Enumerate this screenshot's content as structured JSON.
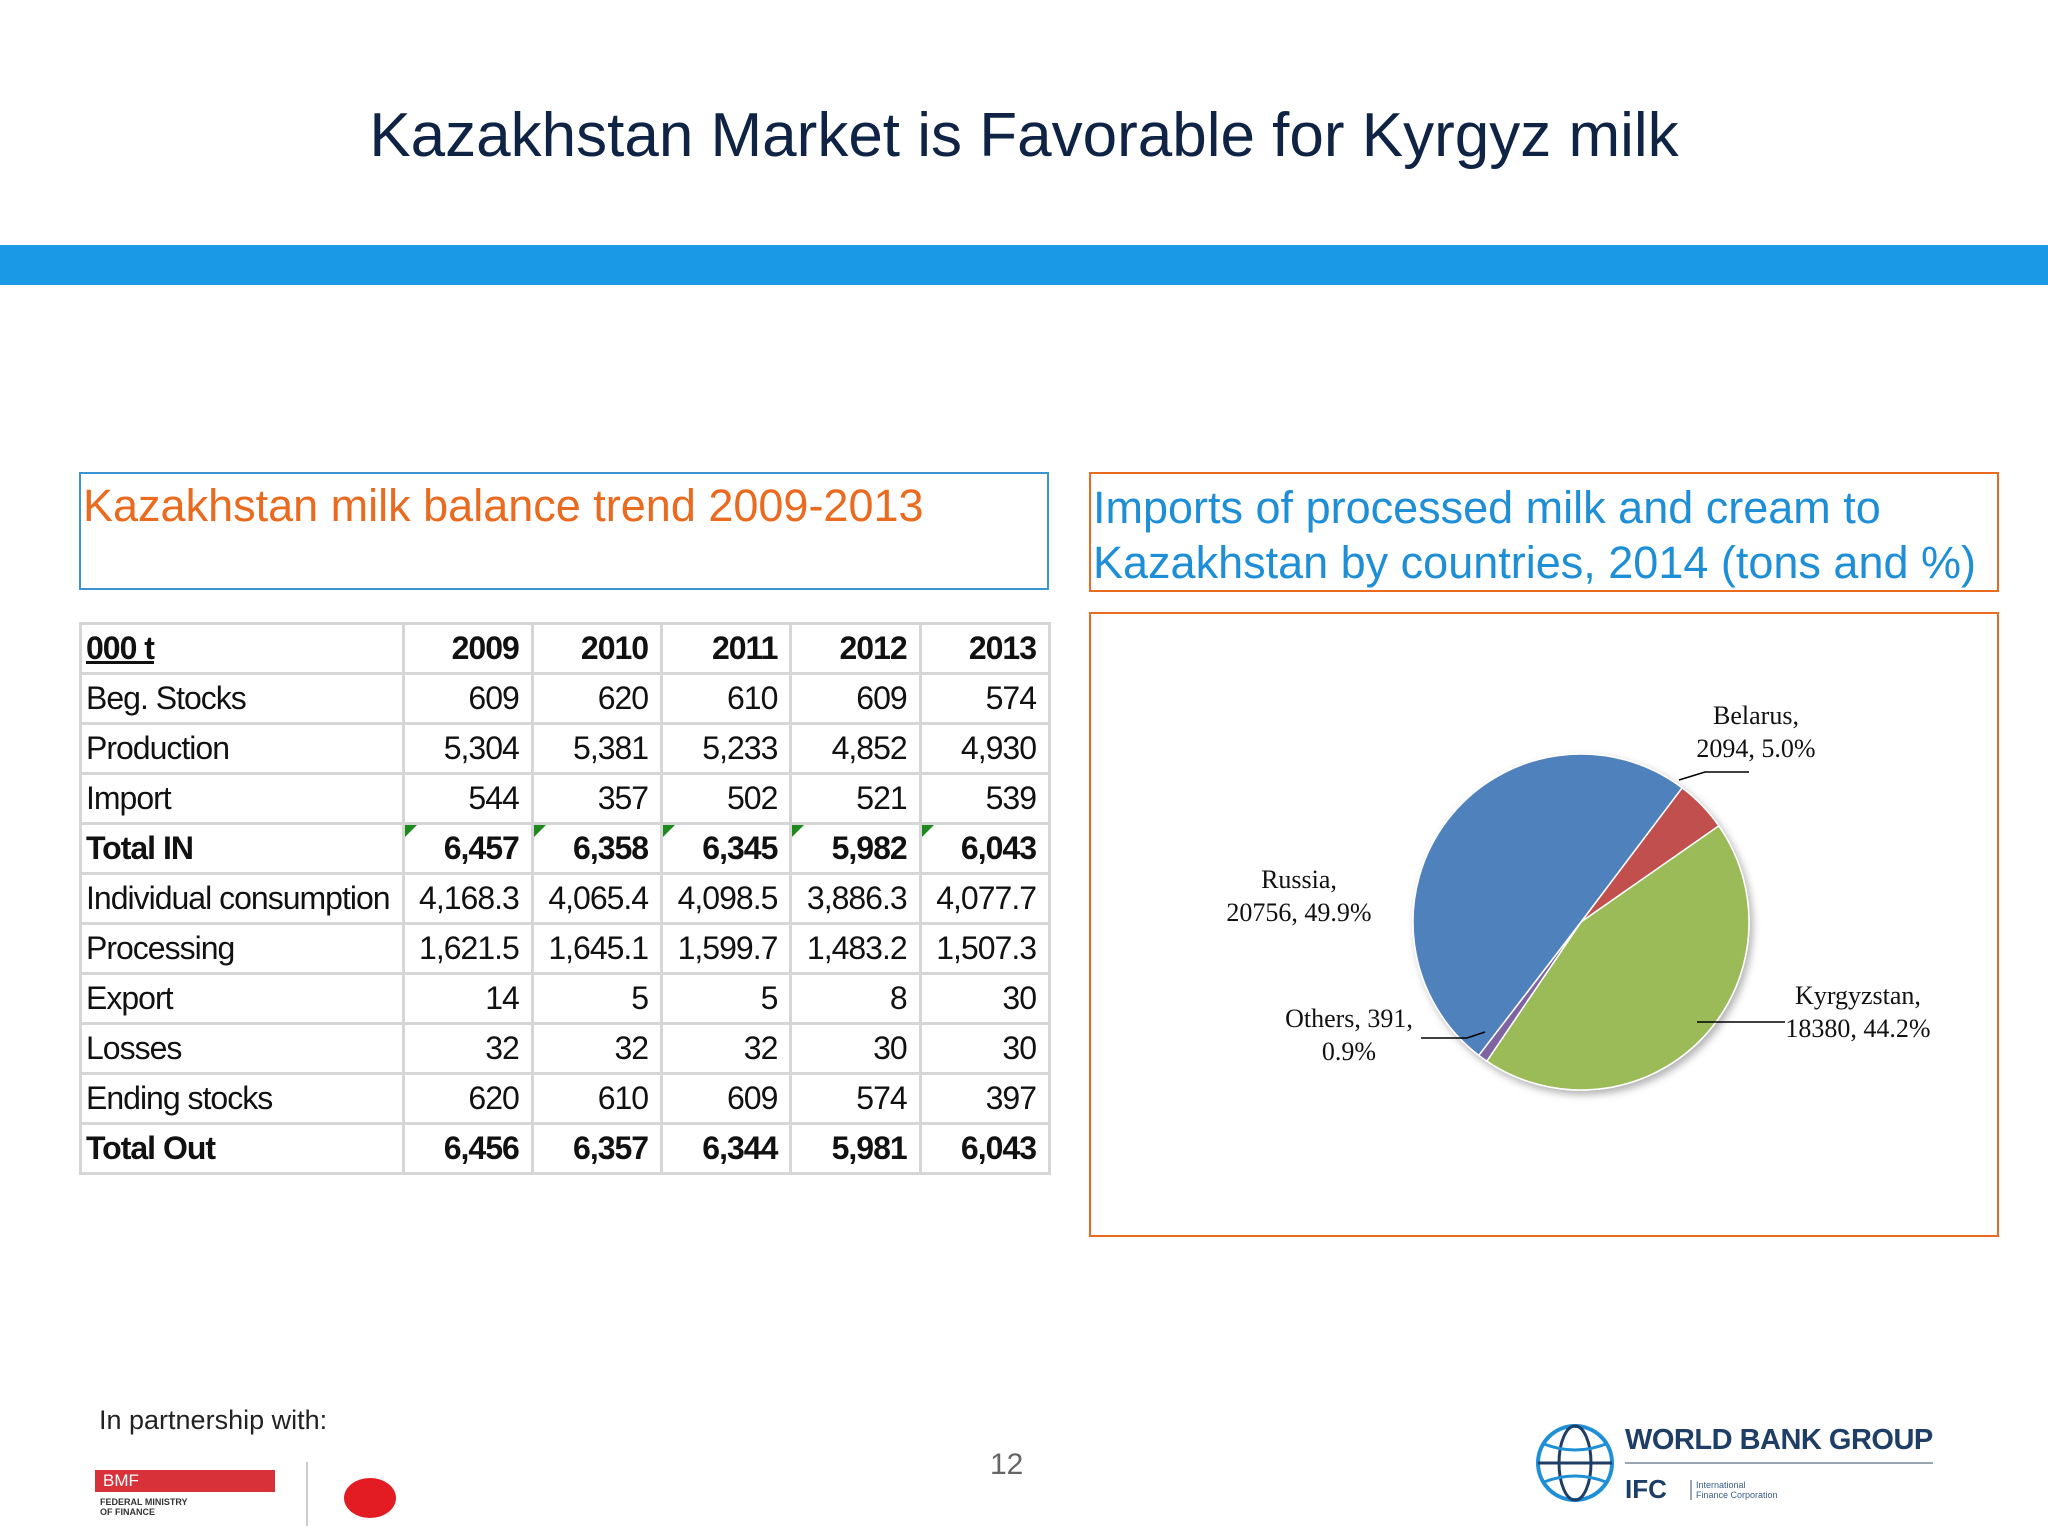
{
  "slide": {
    "title": "Kazakhstan Market is Favorable for Kyrgyz milk",
    "page_number": "12",
    "partnership_label": "In partnership with:"
  },
  "left_panel": {
    "caption": "Kazakhstan milk balance trend 2009-2013"
  },
  "right_panel": {
    "caption_line1": "Imports of processed milk and cream to",
    "caption_line2": "Kazakhstan by countries, 2014 (tons and %)"
  },
  "balance_table": {
    "unit_header": "000 t",
    "years": [
      "2009",
      "2010",
      "2011",
      "2012",
      "2013"
    ],
    "rows": [
      {
        "label": "Beg. Stocks",
        "values": [
          "609",
          "620",
          "610",
          "609",
          "574"
        ],
        "bold": false
      },
      {
        "label": "Production",
        "values": [
          "5,304",
          "5,381",
          "5,233",
          "4,852",
          "4,930"
        ],
        "bold": false
      },
      {
        "label": "Import",
        "values": [
          "544",
          "357",
          "502",
          "521",
          "539"
        ],
        "bold": false
      },
      {
        "label": "Total IN",
        "values": [
          "6,457",
          "6,358",
          "6,345",
          "5,982",
          "6,043"
        ],
        "bold": true
      },
      {
        "label": "Individual consumption",
        "values": [
          "4,168.3",
          "4,065.4",
          "4,098.5",
          "3,886.3",
          "4,077.7"
        ],
        "bold": false
      },
      {
        "label": "Processing",
        "values": [
          "1,621.5",
          "1,645.1",
          "1,599.7",
          "1,483.2",
          "1,507.3"
        ],
        "bold": false
      },
      {
        "label": "Export",
        "values": [
          "14",
          "5",
          "5",
          "8",
          "30"
        ],
        "bold": false
      },
      {
        "label": "Losses",
        "values": [
          "32",
          "32",
          "32",
          "30",
          "30"
        ],
        "bold": false
      },
      {
        "label": "Ending stocks",
        "values": [
          "620",
          "610",
          "609",
          "574",
          "397"
        ],
        "bold": false
      },
      {
        "label": "Total Out",
        "values": [
          "6,456",
          "6,357",
          "6,344",
          "5,981",
          "6,043"
        ],
        "bold": true
      }
    ]
  },
  "chart_data": {
    "type": "pie",
    "slices": [
      {
        "name": "Belarus",
        "value": 2094,
        "percent": 5.0,
        "label_line1": "Belarus,",
        "label_line2": "2094, 5.0%",
        "color": "#c0504d"
      },
      {
        "name": "Kyrgyzstan",
        "value": 18380,
        "percent": 44.2,
        "label_line1": "Kyrgyzstan,",
        "label_line2": "18380, 44.2%",
        "color": "#9bbb59"
      },
      {
        "name": "Others",
        "value": 391,
        "percent": 0.9,
        "label_line1": "Others, 391,",
        "label_line2": "0.9%",
        "color": "#8064a2"
      },
      {
        "name": "Russia",
        "value": 20756,
        "percent": 49.9,
        "label_line1": "Russia,",
        "label_line2": "20756, 49.9%",
        "color": "#4f81bd"
      }
    ]
  },
  "logos": {
    "bmf_name": "BMF",
    "bmf_sub_line1": "FEDERAL MINISTRY",
    "bmf_sub_line2": "OF FINANCE",
    "wbg_name": "WORLD BANK GROUP",
    "ifc_name": "IFC",
    "ifc_sub_line1": "International",
    "ifc_sub_line2": "Finance Corporation"
  }
}
